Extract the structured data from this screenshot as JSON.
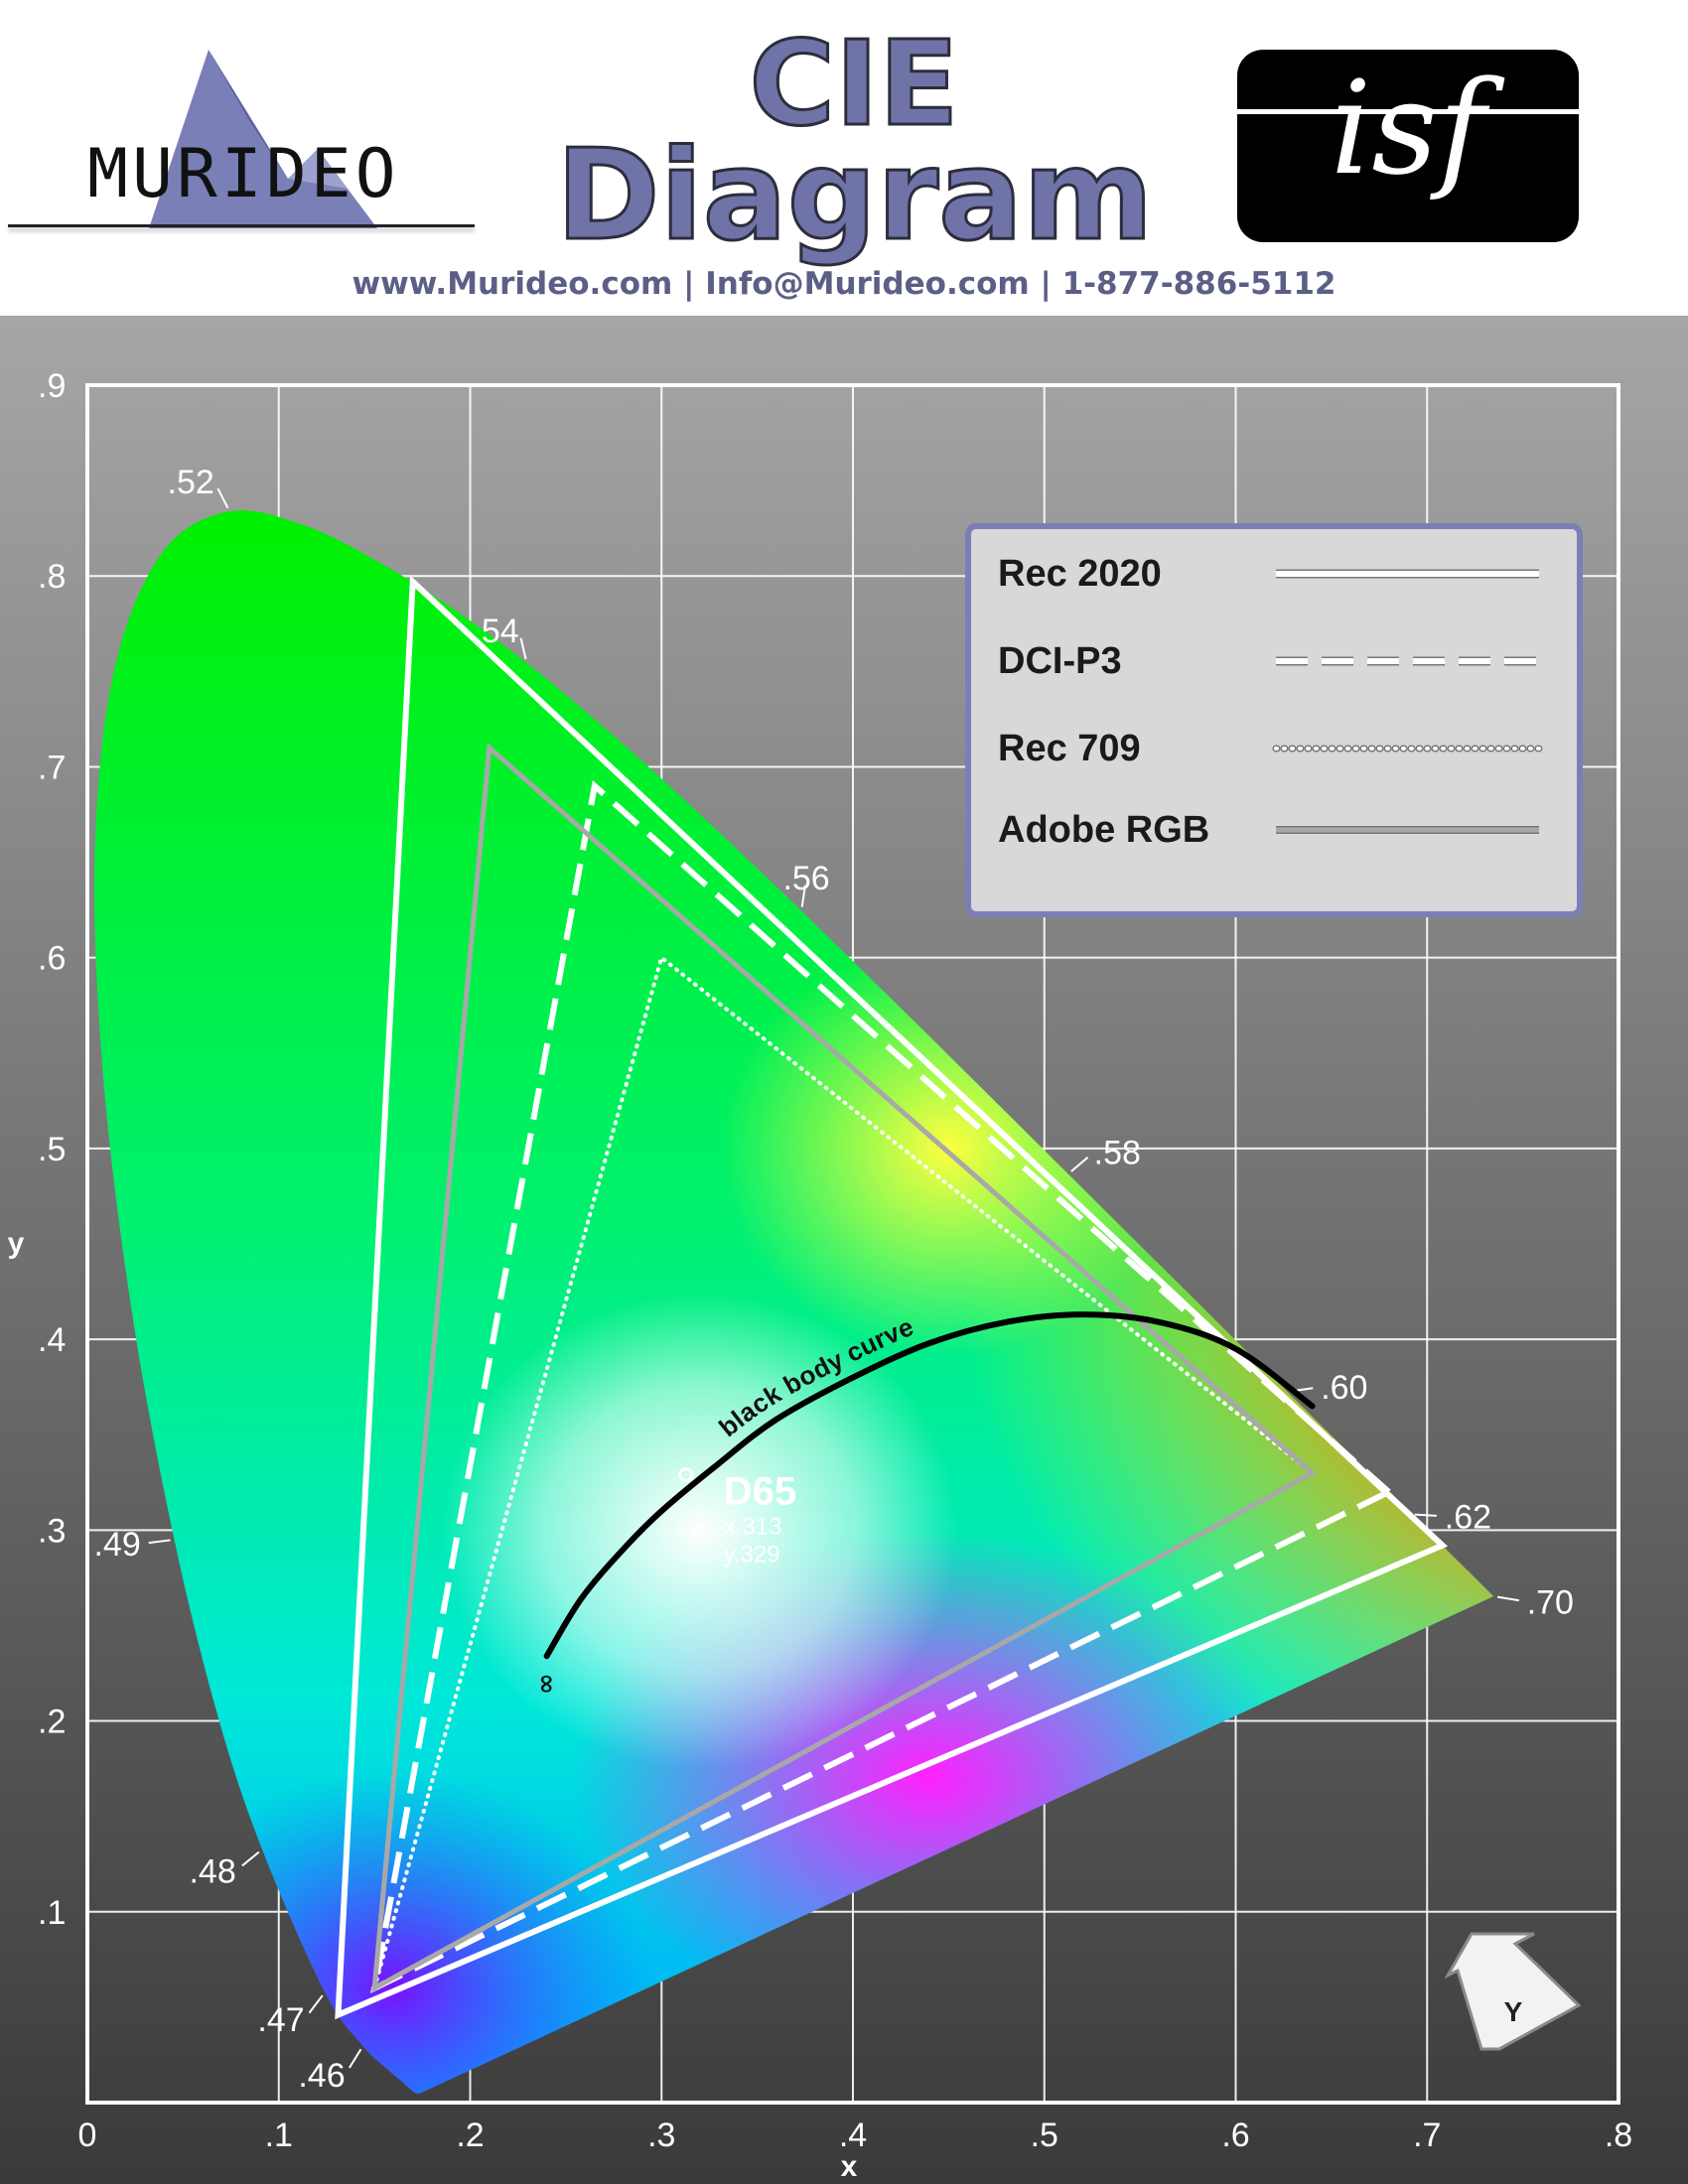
{
  "header": {
    "brand": "MURIDEO",
    "title_line1": "CIE",
    "title_line2": "Diagram",
    "badge": "isf",
    "contact": "www.Murideo.com  |  Info@Murideo.com  |  1-877-886-5112",
    "colors": {
      "title_fill": "#6f73a8",
      "contact": "#5b5f85",
      "logo_mark": "#7a7fb8"
    }
  },
  "chart_data": {
    "type": "cie-chromaticity",
    "xlabel": "x",
    "ylabel": "y",
    "xlim": [
      0,
      0.8
    ],
    "ylim": [
      0,
      0.9
    ],
    "x_ticks": [
      "0",
      ".1",
      ".2",
      ".3",
      ".4",
      ".5",
      ".6",
      ".7",
      ".8"
    ],
    "y_ticks": [
      ".1",
      ".2",
      ".3",
      ".4",
      ".5",
      ".6",
      ".7",
      ".8",
      ".9"
    ],
    "grid": true,
    "spectral_locus": [
      [
        0.1741,
        0.005
      ],
      [
        0.1733,
        0.0048
      ],
      [
        0.1726,
        0.0048
      ],
      [
        0.1714,
        0.0051
      ],
      [
        0.1689,
        0.0069
      ],
      [
        0.1644,
        0.0109
      ],
      [
        0.1566,
        0.0177
      ],
      [
        0.144,
        0.0297
      ],
      [
        0.1241,
        0.0578
      ],
      [
        0.0913,
        0.1327
      ],
      [
        0.0687,
        0.2007
      ],
      [
        0.0454,
        0.295
      ],
      [
        0.0235,
        0.4127
      ],
      [
        0.0082,
        0.5384
      ],
      [
        0.0039,
        0.6548
      ],
      [
        0.0139,
        0.7502
      ],
      [
        0.0389,
        0.812
      ],
      [
        0.0743,
        0.8338
      ],
      [
        0.1142,
        0.8262
      ],
      [
        0.1547,
        0.8059
      ],
      [
        0.1929,
        0.7816
      ],
      [
        0.2296,
        0.7543
      ],
      [
        0.2658,
        0.7243
      ],
      [
        0.3016,
        0.6923
      ],
      [
        0.3373,
        0.6589
      ],
      [
        0.3731,
        0.6245
      ],
      [
        0.4087,
        0.5896
      ],
      [
        0.4441,
        0.5547
      ],
      [
        0.4788,
        0.5202
      ],
      [
        0.5125,
        0.4866
      ],
      [
        0.5448,
        0.4544
      ],
      [
        0.5752,
        0.4242
      ],
      [
        0.6029,
        0.3965
      ],
      [
        0.627,
        0.3725
      ],
      [
        0.6482,
        0.3514
      ],
      [
        0.6658,
        0.334
      ],
      [
        0.6801,
        0.3197
      ],
      [
        0.6915,
        0.3083
      ],
      [
        0.7006,
        0.2993
      ],
      [
        0.7079,
        0.292
      ],
      [
        0.714,
        0.2859
      ],
      [
        0.719,
        0.2809
      ],
      [
        0.723,
        0.277
      ],
      [
        0.726,
        0.274
      ],
      [
        0.7283,
        0.2717
      ],
      [
        0.73,
        0.27
      ],
      [
        0.732,
        0.268
      ],
      [
        0.7347,
        0.2653
      ]
    ],
    "wavelength_labels": [
      {
        "label": ".46",
        "x": 0.144,
        "y": 0.0297
      },
      {
        "label": ".47",
        "x": 0.1241,
        "y": 0.0578
      },
      {
        "label": ".48",
        "x": 0.0913,
        "y": 0.1327
      },
      {
        "label": ".49",
        "x": 0.0454,
        "y": 0.295
      },
      {
        "label": ".52",
        "x": 0.0743,
        "y": 0.8338
      },
      {
        "label": ".54",
        "x": 0.2296,
        "y": 0.7543
      },
      {
        "label": ".56",
        "x": 0.3731,
        "y": 0.6245
      },
      {
        "label": ".58",
        "x": 0.5125,
        "y": 0.4866
      },
      {
        "label": ".60",
        "x": 0.627,
        "y": 0.3725
      },
      {
        "label": ".62",
        "x": 0.6915,
        "y": 0.3083
      },
      {
        "label": ".70",
        "x": 0.7347,
        "y": 0.2653
      }
    ],
    "gamuts": [
      {
        "name": "Rec 2020",
        "style": "solid",
        "color": "#ffffff",
        "points": [
          [
            0.708,
            0.292
          ],
          [
            0.17,
            0.797
          ],
          [
            0.131,
            0.046
          ]
        ]
      },
      {
        "name": "DCI-P3",
        "style": "dashed",
        "color": "#ffffff",
        "points": [
          [
            0.68,
            0.32
          ],
          [
            0.265,
            0.69
          ],
          [
            0.15,
            0.06
          ]
        ]
      },
      {
        "name": "Rec 709",
        "style": "dotted",
        "color": "#ffffff",
        "points": [
          [
            0.64,
            0.33
          ],
          [
            0.3,
            0.6
          ],
          [
            0.15,
            0.06
          ]
        ]
      },
      {
        "name": "Adobe RGB",
        "style": "solid-gray",
        "color": "#a8a8a8",
        "points": [
          [
            0.64,
            0.33
          ],
          [
            0.21,
            0.71
          ],
          [
            0.15,
            0.06
          ]
        ]
      }
    ],
    "blackbody": {
      "label": "black body curve",
      "end_label": "∞",
      "points": [
        [
          0.24,
          0.234
        ],
        [
          0.258,
          0.264
        ],
        [
          0.28,
          0.29
        ],
        [
          0.3,
          0.31
        ],
        [
          0.33,
          0.335
        ],
        [
          0.36,
          0.358
        ],
        [
          0.4,
          0.38
        ],
        [
          0.44,
          0.398
        ],
        [
          0.48,
          0.409
        ],
        [
          0.52,
          0.413
        ],
        [
          0.56,
          0.409
        ],
        [
          0.6,
          0.395
        ],
        [
          0.64,
          0.365
        ]
      ]
    },
    "white_point": {
      "name": "D65",
      "x": 0.3127,
      "y": 0.329,
      "x_text": "x.313",
      "y_text": "y.329"
    },
    "y_badge": "Y",
    "colors": {
      "panel_top": "#a6a6a6",
      "panel_bottom": "#3a3a3a",
      "legend_border": "#7a7fb8",
      "legend_fill": "#d8d8d8"
    }
  }
}
